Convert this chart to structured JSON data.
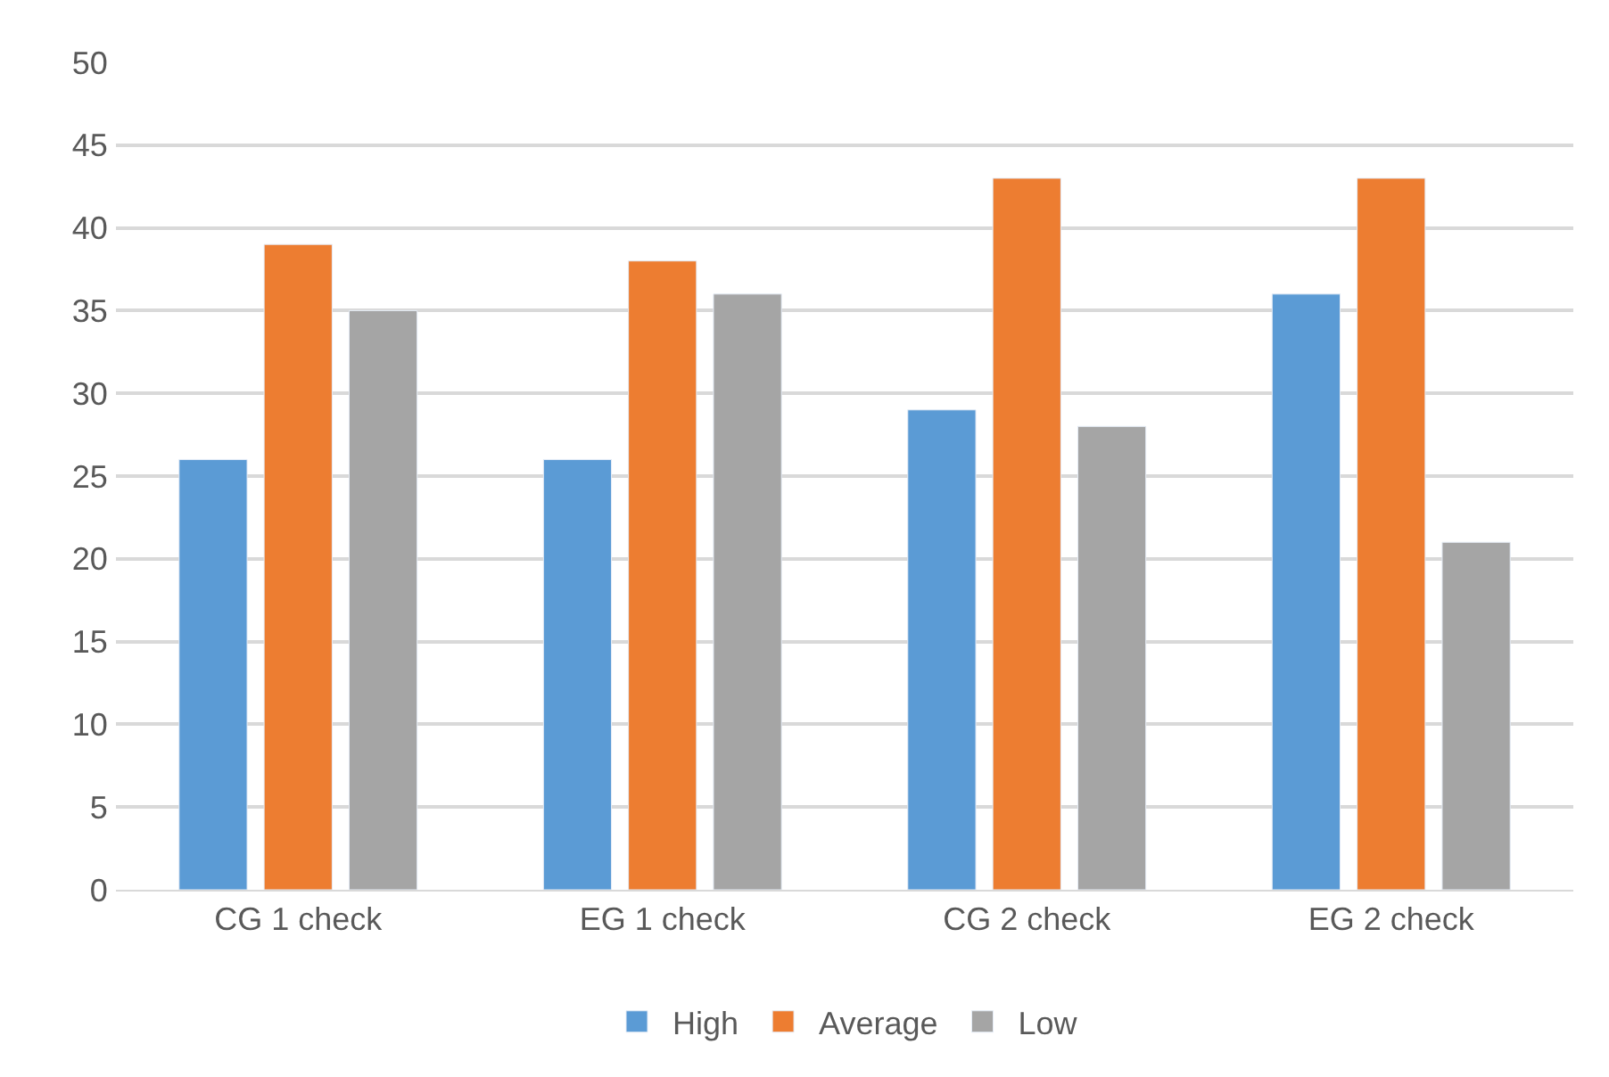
{
  "chart_data": {
    "type": "bar",
    "categories": [
      "CG 1 check",
      "EG 1 check",
      "CG 2 check",
      "EG 2 check"
    ],
    "series": [
      {
        "name": "High",
        "color": "#5b9bd5",
        "values": [
          26,
          26,
          29,
          36
        ]
      },
      {
        "name": "Average",
        "color": "#ed7d31",
        "values": [
          39,
          38,
          43,
          43
        ]
      },
      {
        "name": "Low",
        "color": "#a5a5a5",
        "values": [
          35,
          36,
          28,
          21
        ]
      }
    ],
    "ylim": [
      0,
      50
    ],
    "yticks": [
      0,
      5,
      10,
      15,
      20,
      25,
      30,
      35,
      40,
      45,
      50
    ],
    "grid": "y",
    "legend": "bottom"
  }
}
